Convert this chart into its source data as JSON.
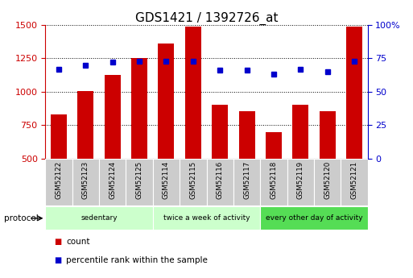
{
  "title": "GDS1421 / 1392726_at",
  "samples": [
    "GSM52122",
    "GSM52123",
    "GSM52124",
    "GSM52125",
    "GSM52114",
    "GSM52115",
    "GSM52116",
    "GSM52117",
    "GSM52118",
    "GSM52119",
    "GSM52120",
    "GSM52121"
  ],
  "counts": [
    830,
    1005,
    1125,
    1250,
    1360,
    1490,
    905,
    855,
    695,
    905,
    855,
    1490
  ],
  "percentiles": [
    67,
    70,
    72,
    73,
    73,
    73,
    66,
    66,
    63,
    67,
    65,
    73
  ],
  "ylim_left": [
    500,
    1500
  ],
  "ylim_right": [
    0,
    100
  ],
  "yticks_left": [
    500,
    750,
    1000,
    1250,
    1500
  ],
  "yticks_right": [
    0,
    25,
    50,
    75,
    100
  ],
  "bar_color": "#cc0000",
  "dot_color": "#0000cc",
  "bg_color": "#ffffff",
  "protocol_groups": [
    {
      "label": "sedentary",
      "start": 0,
      "end": 4,
      "color": "#ccffcc"
    },
    {
      "label": "twice a week of activity",
      "start": 4,
      "end": 8,
      "color": "#ccffcc"
    },
    {
      "label": "every other day of activity",
      "start": 8,
      "end": 12,
      "color": "#55dd55"
    }
  ],
  "protocol_label": "protocol",
  "legend_count": "count",
  "legend_pct": "percentile rank within the sample",
  "sample_bg_color": "#cccccc",
  "title_fontsize": 11,
  "tick_fontsize": 8,
  "right_tick_labels": [
    "0",
    "25",
    "50",
    "75",
    "100%"
  ]
}
